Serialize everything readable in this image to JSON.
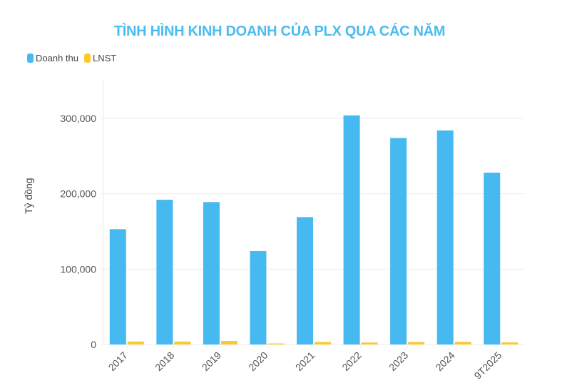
{
  "title": "TÌNH HÌNH KINH DOANH CỦA PLX QUA CÁC NĂM",
  "legend": [
    {
      "label": "Doanh thu",
      "color": "#47b9f1"
    },
    {
      "label": "LNST",
      "color": "#fdc82f"
    }
  ],
  "y_axis_label": "Tỷ đồng",
  "chart_data": {
    "type": "bar",
    "title": "TÌNH HÌNH KINH DOANH CỦA PLX QUA CÁC NĂM",
    "xlabel": "",
    "ylabel": "Tỷ đồng",
    "categories": [
      "2017",
      "2018",
      "2019",
      "2020",
      "2021",
      "2022",
      "2023",
      "2024",
      "9T2025"
    ],
    "series": [
      {
        "name": "Doanh thu",
        "color": "#47b9f1",
        "values": [
          153000,
          192000,
          189000,
          124000,
          169000,
          304000,
          274000,
          284000,
          228000
        ]
      },
      {
        "name": "LNST",
        "color": "#fdc82f",
        "values": [
          3900,
          3900,
          4700,
          1000,
          3300,
          2600,
          3300,
          3500,
          2800
        ]
      }
    ],
    "yticks": [
      0,
      100000,
      200000,
      300000
    ],
    "ytick_labels": [
      "0",
      "100,000",
      "200,000",
      "300,000"
    ],
    "ylim": [
      0,
      350000
    ],
    "grid": true,
    "legend_position": "top-left"
  }
}
